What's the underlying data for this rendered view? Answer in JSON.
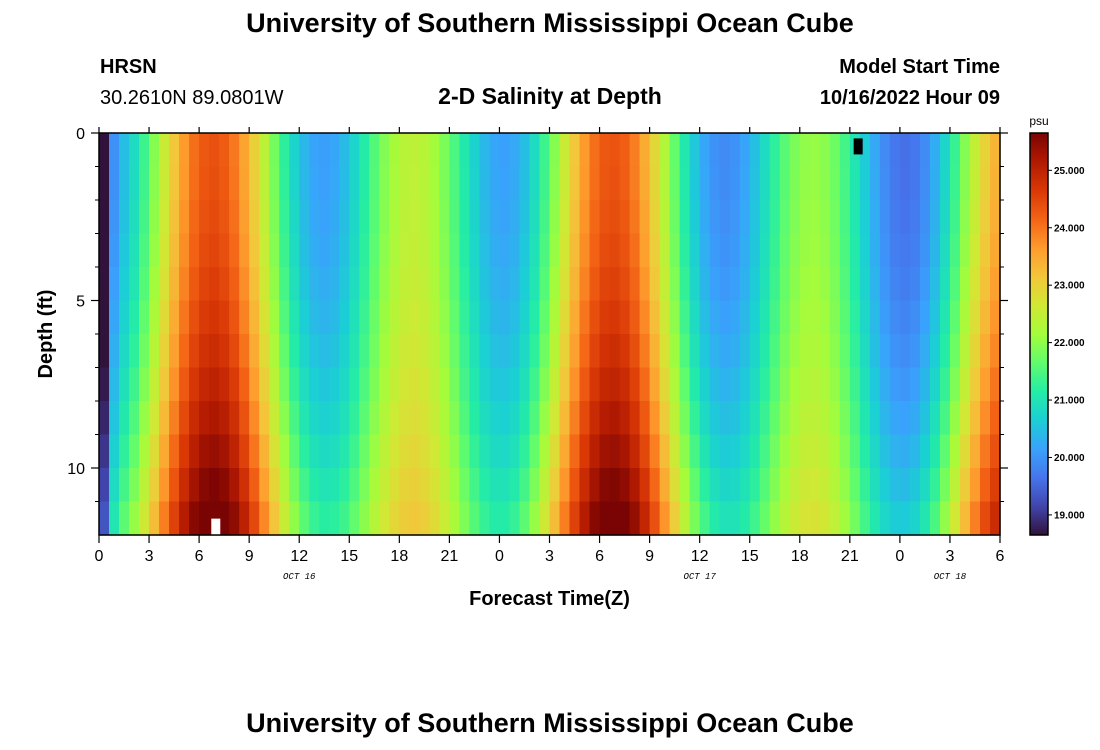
{
  "header": {
    "title": "University of Southern Mississippi Ocean Cube",
    "station_code": "HRSN",
    "coordinates": "30.2610N  89.0801W",
    "chart_title": "2-D Salinity at Depth",
    "model_start_label": "Model Start Time",
    "model_start_value": "10/16/2022 Hour 09"
  },
  "footer": {
    "title": "University of Southern Mississippi Ocean Cube"
  },
  "chart_data": {
    "type": "heatmap",
    "title": "2-D Salinity at Depth",
    "xlabel": "Forecast Time(Z)",
    "ylabel": "Depth (ft)",
    "x_hours_range": [
      0,
      54
    ],
    "x_tick_hours": [
      0,
      3,
      6,
      9,
      12,
      15,
      18,
      21,
      24,
      27,
      30,
      33,
      36,
      39,
      42,
      45,
      48,
      51,
      54
    ],
    "x_tick_labels": [
      "0",
      "3",
      "6",
      "9",
      "12",
      "15",
      "18",
      "21",
      "0",
      "3",
      "6",
      "9",
      "12",
      "15",
      "18",
      "21",
      "0",
      "3",
      "6"
    ],
    "date_labels": [
      {
        "hour": 12,
        "text": "OCT 16"
      },
      {
        "hour": 36,
        "text": "OCT 17"
      },
      {
        "hour": 51,
        "text": "OCT 18"
      }
    ],
    "y_range_ft": [
      0,
      12
    ],
    "y_major_ticks": [
      0,
      5,
      10
    ],
    "y_minor_ticks": [
      1,
      2,
      3,
      4,
      6,
      7,
      8,
      9,
      11
    ],
    "depth_levels": 12,
    "colorbar": {
      "unit": "psu",
      "min": 18.65,
      "max": 25.65,
      "ticks": [
        19.0,
        20.0,
        21.0,
        22.0,
        23.0,
        24.0,
        25.0
      ],
      "tick_labels": [
        "19.000",
        "20.000",
        "21.000",
        "22.000",
        "23.000",
        "24.000",
        "25.000"
      ],
      "colors": [
        "#30123b",
        "#4145ab",
        "#4675ed",
        "#39a2fc",
        "#1bcfd4",
        "#24eca6",
        "#61fc6c",
        "#a4fc3b",
        "#d1e834",
        "#f3c63a",
        "#fe9b2d",
        "#f36315",
        "#d93806",
        "#b11901",
        "#7a0403"
      ]
    },
    "salinity_model": {
      "pattern": "tidal oscillation, high salinity peaks around hour 7 and hour 31, low salinity minimum around hour 46, saltier at depth"
    },
    "markers": [
      {
        "hour": 7,
        "depth_ft": 11.75,
        "color": "#ffffff"
      },
      {
        "hour": 45.5,
        "depth_ft": 0.4,
        "color": "#000000"
      }
    ]
  }
}
